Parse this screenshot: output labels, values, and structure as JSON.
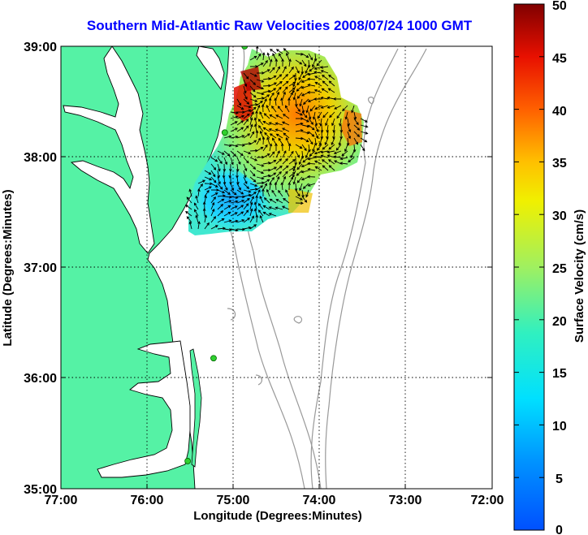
{
  "title": "Southern Mid-Atlantic Raw Velocities 2008/07/24 1000 GMT",
  "xaxis": {
    "label": "Longitude (Degrees:Minutes)",
    "ticks": [
      "77:00",
      "76:00",
      "75:00",
      "74:00",
      "73:00",
      "72:00"
    ]
  },
  "yaxis": {
    "label": "Latitude (Degrees:Minutes)",
    "ticks": [
      "39:00",
      "38:00",
      "37:00",
      "36:00",
      "35:00"
    ]
  },
  "colorbar": {
    "label": "Surface Velocity (cm/s)",
    "ticks": [
      "50",
      "45",
      "40",
      "35",
      "30",
      "25",
      "20",
      "15",
      "10",
      "5",
      "0"
    ],
    "min": 0,
    "max": 50
  },
  "colors": {
    "land": "#55f2a5",
    "water": "#ffffff",
    "bathymetry": "#999999",
    "grid": "#000000",
    "title": "#0000ff",
    "station": "#2fd02f"
  },
  "chart_data": {
    "type": "heatmap",
    "title": "Southern Mid-Atlantic Raw Velocities 2008/07/24 1000 GMT",
    "xlabel": "Longitude (Degrees:Minutes)",
    "ylabel": "Latitude (Degrees:Minutes)",
    "xlim": [
      -77.0,
      -72.0
    ],
    "ylim": [
      35.0,
      39.0
    ],
    "grid": true,
    "colorbar_range": [
      0,
      50
    ],
    "stations": [
      {
        "lon": -74.87,
        "lat": 39.0
      },
      {
        "lon": -75.1,
        "lat": 38.22
      },
      {
        "lon": -75.23,
        "lat": 36.18
      },
      {
        "lon": -75.53,
        "lat": 35.25
      }
    ]
  }
}
